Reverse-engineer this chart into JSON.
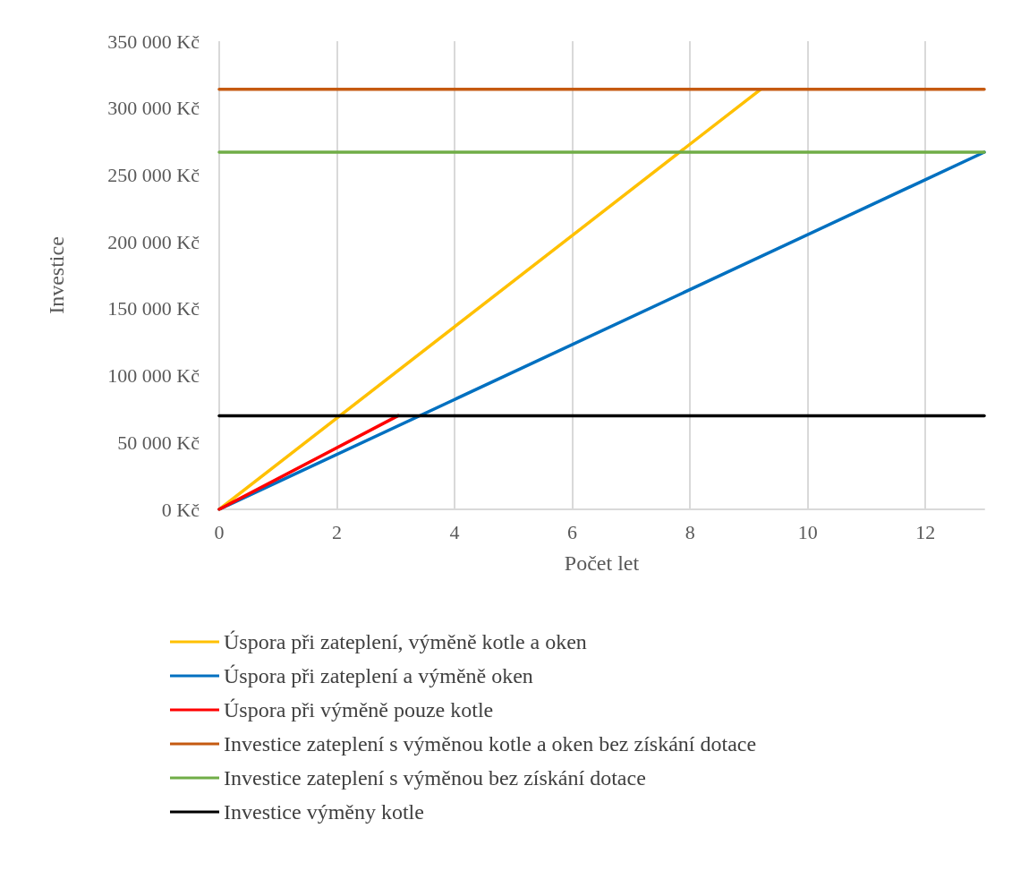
{
  "chart_data": {
    "type": "line",
    "xlabel": "Počet let",
    "ylabel": "Investice",
    "xlim": [
      0,
      13
    ],
    "xticks": [
      0,
      2,
      4,
      6,
      8,
      10,
      12
    ],
    "ylim": [
      0,
      350000
    ],
    "yticks": [
      {
        "value": 0,
        "label": "0 Kč"
      },
      {
        "value": 50000,
        "label": "50 000 Kč"
      },
      {
        "value": 100000,
        "label": "100 000 Kč"
      },
      {
        "value": 150000,
        "label": "150 000 Kč"
      },
      {
        "value": 200000,
        "label": "200 000 Kč"
      },
      {
        "value": 250000,
        "label": "250 000 Kč"
      },
      {
        "value": 300000,
        "label": "300 000 Kč"
      },
      {
        "value": 350000,
        "label": "350 000 Kč"
      }
    ],
    "grid": "x",
    "legend": "bottom",
    "marker": "none",
    "line_style": "solid",
    "series": [
      {
        "name": "Úspora při zateplení, výměně kotle a oken",
        "color": "#ffc000",
        "x": [
          0,
          9.2
        ],
        "values": [
          0,
          314000
        ]
      },
      {
        "name": "Úspora při zateplení a výměně oken",
        "color": "#0070c0",
        "x": [
          0,
          13
        ],
        "values": [
          0,
          267000
        ]
      },
      {
        "name": "Úspora při výměně pouze kotle",
        "color": "#ff0000",
        "x": [
          0,
          3.04
        ],
        "values": [
          0,
          70000
        ]
      },
      {
        "name": "Investice zateplení s výměnou kotle a oken bez získání dotace",
        "color": "#c55a11",
        "x": [
          0,
          13
        ],
        "values": [
          314000,
          314000
        ]
      },
      {
        "name": "Investice zateplení s výměnou bez získání dotace",
        "color": "#70ad47",
        "x": [
          0,
          13
        ],
        "values": [
          267000,
          267000
        ]
      },
      {
        "name": "Investice výměny kotle",
        "color": "#000000",
        "x": [
          0,
          13
        ],
        "values": [
          70000,
          70000
        ]
      }
    ]
  }
}
